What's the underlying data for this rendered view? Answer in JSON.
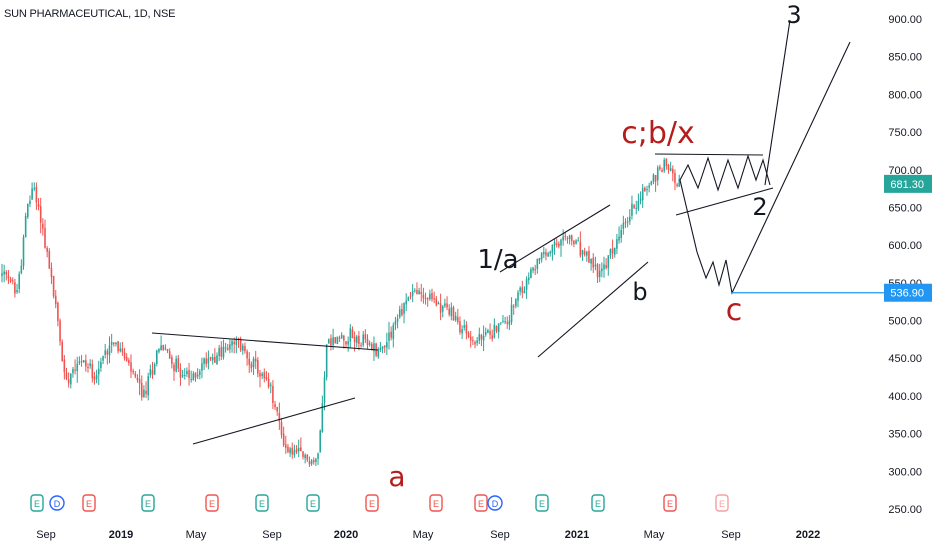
{
  "header": {
    "symbol": "SUN PHARMACEUTICAL, 1D, NSE"
  },
  "chart_data": {
    "type": "candlestick",
    "title": "SUN PHARMACEUTICAL, 1D, NSE",
    "ylim": [
      240,
      915
    ],
    "y_ticks": [
      "900.00",
      "850.00",
      "800.00",
      "750.00",
      "700.00",
      "650.00",
      "600.00",
      "550.00",
      "500.00",
      "450.00",
      "400.00",
      "350.00",
      "300.00",
      "250.00"
    ],
    "x_ticks": [
      {
        "label": "Sep",
        "year": false
      },
      {
        "label": "2019",
        "year": true
      },
      {
        "label": "May",
        "year": false
      },
      {
        "label": "Sep",
        "year": false
      },
      {
        "label": "2020",
        "year": true
      },
      {
        "label": "May",
        "year": false
      },
      {
        "label": "Sep",
        "year": false
      },
      {
        "label": "2021",
        "year": true
      },
      {
        "label": "May",
        "year": false
      },
      {
        "label": "Sep",
        "year": false
      },
      {
        "label": "2022",
        "year": true
      }
    ],
    "price_path": [
      [
        0,
        560
      ],
      [
        0.05,
        540
      ],
      [
        0.08,
        650
      ],
      [
        0.1,
        680
      ],
      [
        0.13,
        620
      ],
      [
        0.17,
        520
      ],
      [
        0.2,
        420
      ],
      [
        0.24,
        450
      ],
      [
        0.3,
        430
      ],
      [
        0.35,
        480
      ],
      [
        0.4,
        440
      ],
      [
        0.45,
        400
      ],
      [
        0.5,
        470
      ],
      [
        0.55,
        440
      ],
      [
        0.6,
        420
      ],
      [
        0.65,
        450
      ],
      [
        0.7,
        460
      ],
      [
        0.75,
        470
      ],
      [
        0.8,
        440
      ],
      [
        0.85,
        410
      ],
      [
        0.9,
        330
      ],
      [
        1.0,
        310
      ],
      [
        1.03,
        470
      ],
      [
        1.1,
        480
      ],
      [
        1.2,
        460
      ],
      [
        1.3,
        540
      ],
      [
        1.4,
        520
      ],
      [
        1.5,
        470
      ],
      [
        1.6,
        500
      ],
      [
        1.7,
        580
      ],
      [
        1.8,
        610
      ],
      [
        1.9,
        560
      ],
      [
        2.0,
        650
      ],
      [
        2.1,
        710
      ],
      [
        2.15,
        681.3
      ]
    ],
    "last_price": "681.30",
    "target_level": "536.90",
    "colors": {
      "up": "#26a69a",
      "down": "#ef5350",
      "last_price_bg": "#26a69a",
      "level_line": "#2196f3",
      "level_bg": "#2196f3",
      "wave_red": "#b71c1c",
      "wave_black": "#131722"
    },
    "wave_labels": [
      {
        "text": "a",
        "color": "red",
        "price": 292
      },
      {
        "text": "1/a",
        "color": "black",
        "price": 580
      },
      {
        "text": "b",
        "color": "black",
        "price": 540
      },
      {
        "text": "c;b/x",
        "color": "red",
        "price": 740
      },
      {
        "text": "2",
        "color": "black",
        "price": 650
      },
      {
        "text": "3",
        "color": "black",
        "price": 915
      },
      {
        "text": "c",
        "color": "red",
        "price": 508
      }
    ],
    "event_markers": [
      "E",
      "D",
      "E",
      "E",
      "E",
      "E",
      "E",
      "E",
      "E",
      "E",
      "D",
      "E",
      "E",
      "E",
      "E"
    ]
  }
}
